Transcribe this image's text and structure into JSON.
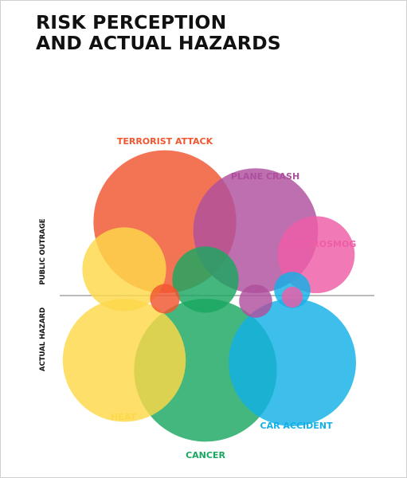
{
  "title_lines": [
    "RISK PERCEPTION",
    "AND ACTUAL HAZARDS"
  ],
  "axis_labels": {
    "upper": "PUBLIC OUTRAGE",
    "lower": "ACTUAL HAZARD"
  },
  "colors": {
    "heat": "#fdd849",
    "cancer": "#1aa760",
    "car_accident": "#12b0e6",
    "terrorist_attack": "#f0562f",
    "plane_crash": "#ae4f9d",
    "electrosmog": "#ee5da6",
    "divider": "#777777"
  },
  "chart_data": {
    "type": "bubble",
    "title": "RISK PERCEPTION AND ACTUAL HAZARDS",
    "upper_axis_label": "PUBLIC OUTRAGE",
    "lower_axis_label": "ACTUAL HAZARD",
    "series": [
      {
        "name": "TERRORIST ATTACK",
        "public_outrage": 93,
        "actual_hazard": 4,
        "color": "#f0562f"
      },
      {
        "name": "PLANE CRASH",
        "public_outrage": 71,
        "actual_hazard": 5,
        "color": "#ae4f9d"
      },
      {
        "name": "ELECTROSMOG",
        "public_outrage": 27,
        "actual_hazard": 2,
        "color": "#ee5da6"
      },
      {
        "name": "HEAT",
        "public_outrage": 32,
        "actual_hazard": 69,
        "color": "#fdd849"
      },
      {
        "name": "CANCER",
        "public_outrage": 20,
        "actual_hazard": 93,
        "color": "#1aa760"
      },
      {
        "name": "CAR ACCIDENT",
        "public_outrage": 6,
        "actual_hazard": 74,
        "color": "#12b0e6"
      }
    ]
  }
}
